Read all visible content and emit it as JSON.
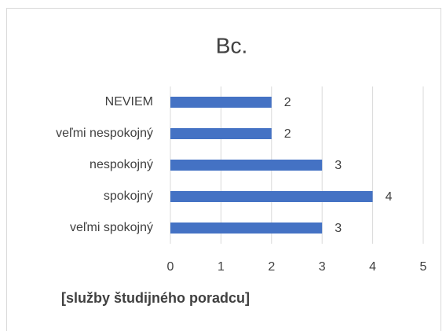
{
  "chart_data": {
    "type": "bar",
    "orientation": "horizontal",
    "title": "Bc.",
    "x_label": "[služby študijného poradcu]",
    "categories": [
      "NEVIEM",
      "veľmi nespokojný",
      "nespokojný",
      "spokojný",
      "veľmi spokojný"
    ],
    "values": [
      2,
      2,
      3,
      4,
      3
    ],
    "color": "#4472c4",
    "xlim": [
      0,
      5
    ],
    "xticks": [
      0,
      1,
      2,
      3,
      4,
      5
    ],
    "grid": true
  }
}
